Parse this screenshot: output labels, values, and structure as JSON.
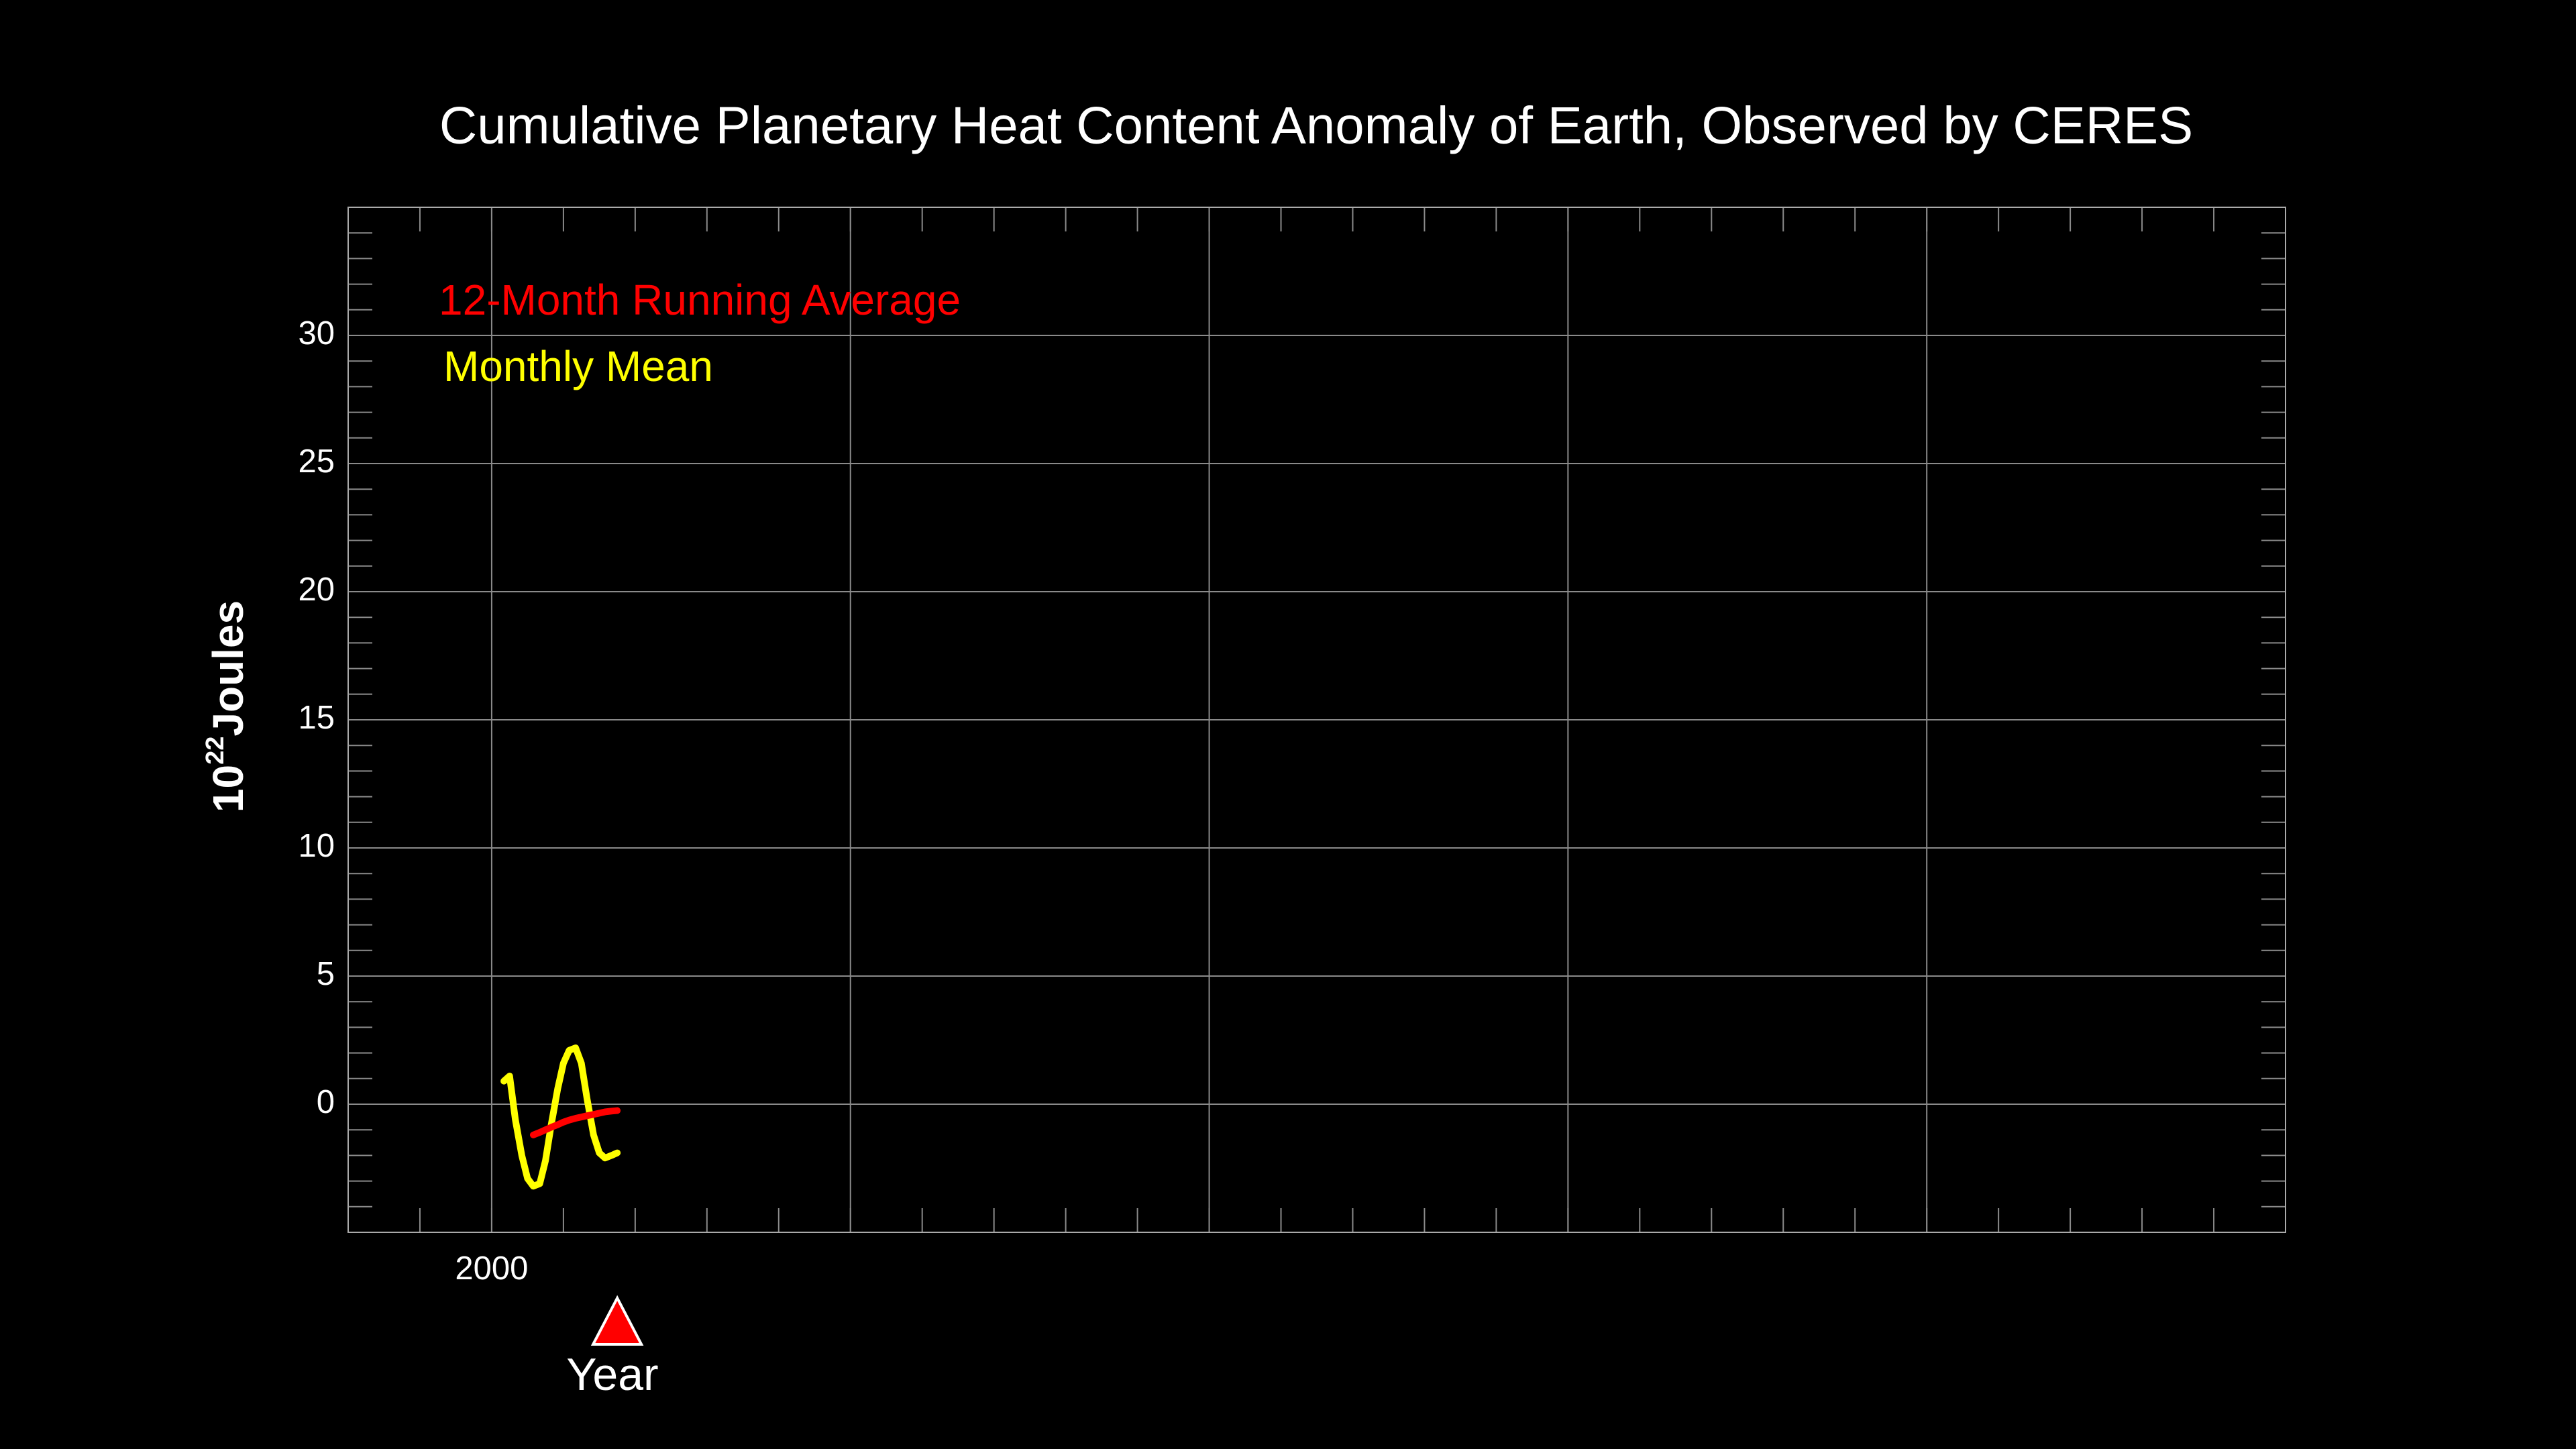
{
  "chart_data": {
    "type": "line",
    "title": "Cumulative Planetary Heat Content Anomaly of Earth, Observed by CERES",
    "xlabel": "Year",
    "ylabel": {
      "base": "10",
      "exponent": "22",
      "unit": "Joules"
    },
    "xlim": [
      1998,
      2025
    ],
    "ylim": [
      -5,
      35
    ],
    "xticks": [
      2000,
      {
        "value": 2005,
        "label": null
      },
      {
        "value": 2010,
        "label": null
      },
      {
        "value": 2015,
        "label": null
      },
      {
        "value": 2020,
        "label": null
      }
    ],
    "yticks": [
      0,
      5,
      10,
      15,
      20,
      25,
      30
    ],
    "xminor": 1,
    "yminor": 1,
    "grid": true,
    "current_x": 2001.75,
    "current_color": "#ff0000",
    "series": [
      {
        "name": "12-Month Running Average",
        "color": "#ff0000",
        "x": [
          2000.58,
          2000.67,
          2000.75,
          2000.83,
          2000.92,
          2001,
          2001.08,
          2001.17,
          2001.25,
          2001.33,
          2001.42,
          2001.5,
          2001.58,
          2001.67,
          2001.75
        ],
        "values": [
          -1.2,
          -1.1,
          -1.0,
          -0.9,
          -0.8,
          -0.7,
          -0.62,
          -0.55,
          -0.5,
          -0.45,
          -0.4,
          -0.35,
          -0.3,
          -0.27,
          -0.25
        ]
      },
      {
        "name": "Monthly Mean",
        "color": "#ffff00",
        "x": [
          2000.17,
          2000.25,
          2000.33,
          2000.42,
          2000.5,
          2000.58,
          2000.67,
          2000.75,
          2000.83,
          2000.92,
          2001,
          2001.08,
          2001.17,
          2001.25,
          2001.33,
          2001.42,
          2001.5,
          2001.58,
          2001.67,
          2001.75
        ],
        "values": [
          0.9,
          1.1,
          -0.6,
          -2.0,
          -2.9,
          -3.2,
          -3.1,
          -2.2,
          -0.8,
          0.6,
          1.6,
          2.1,
          2.2,
          1.6,
          0.2,
          -1.2,
          -1.9,
          -2.1,
          -2.0,
          -1.9
        ]
      }
    ]
  }
}
